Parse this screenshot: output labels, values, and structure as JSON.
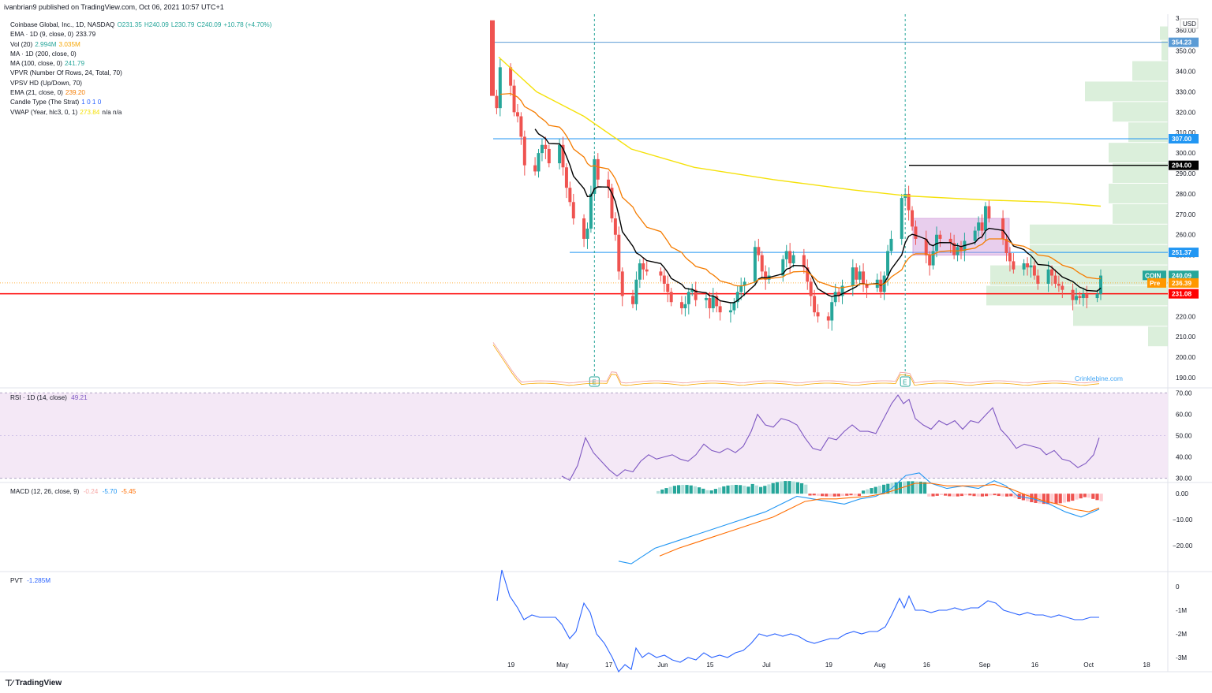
{
  "header": {
    "published": "ivanbrian9 published on TradingView.com, Oct 06, 2021 10:57 UTC+1"
  },
  "legend": [
    {
      "label": "Coinbase Global, Inc., 1D, NASDAQ",
      "values": [
        {
          "text": "O231.35",
          "color": "#26a69a"
        },
        {
          "text": "H240.09",
          "color": "#26a69a"
        },
        {
          "text": "L230.79",
          "color": "#26a69a"
        },
        {
          "text": "C240.09",
          "color": "#26a69a"
        },
        {
          "text": "+10.78 (+4.70%)",
          "color": "#26a69a"
        }
      ]
    },
    {
      "label": "EMA · 1D (9, close, 0)",
      "values": [
        {
          "text": "233.79",
          "color": "#131722"
        }
      ]
    },
    {
      "label": "Vol (20)",
      "values": [
        {
          "text": "2.994M",
          "color": "#26a69a"
        },
        {
          "text": "3.035M",
          "color": "#f7a600"
        }
      ]
    },
    {
      "label": "MA · 1D (200, close, 0)",
      "values": []
    },
    {
      "label": "MA (100, close, 0)",
      "values": [
        {
          "text": "241.79",
          "color": "#26a69a"
        }
      ]
    },
    {
      "label": "VPVR (Number Of Rows, 24, Total, 70)",
      "values": []
    },
    {
      "label": "VPSV HD (Up/Down, 70)",
      "values": []
    },
    {
      "label": "EMA (21, close, 0)",
      "values": [
        {
          "text": "239.20",
          "color": "#f57c00"
        }
      ]
    },
    {
      "label": "Candle Type (The Strat)",
      "values": [
        {
          "text": "1  0  1  0",
          "color": "#2962ff"
        }
      ]
    },
    {
      "label": "VWAP (Year, hlc3, 0, 1)",
      "values": [
        {
          "text": "273.84",
          "color": "#f5e10a"
        },
        {
          "text": "n/a  n/a",
          "color": "#131722"
        }
      ]
    }
  ],
  "panes": {
    "rsi_label": "RSI · 1D (14, close)",
    "rsi_value": "49.21",
    "macd_label": "MACD (12, 26, close, 9)",
    "macd_hist": "-0.24",
    "macd_line": "-5.70",
    "macd_signal": "-5.45",
    "pvt_label": "PVT",
    "pvt_value": "-1.285M"
  },
  "watermark": "Crinklebine.com",
  "footer": {
    "brand": "TradingView"
  },
  "colors": {
    "up": "#26a69a",
    "down": "#ef5350",
    "ema9": "#000000",
    "ema21": "#f57c00",
    "ma200": "#f5e10a",
    "rsi": "#7e57c2",
    "macd": "#2196f3",
    "signal": "#ff6d00",
    "pvt": "#2962ff",
    "level": "#00bcd4",
    "support": "#ff0000",
    "volprofile": "#cfe9cf"
  },
  "chart_data": {
    "type": "candlestick",
    "symbol": "COIN",
    "currency": "USD",
    "x_ticks": [
      "19",
      "May",
      "17",
      "Jun",
      "15",
      "Jul",
      "19",
      "Aug",
      "16",
      "Sep",
      "16",
      "Oct",
      "18"
    ],
    "price_axis": {
      "ylim": [
        185,
        368
      ],
      "ticks": [
        190,
        200,
        210,
        220,
        230,
        240,
        250,
        260,
        270,
        280,
        290,
        300,
        310,
        320,
        330,
        340,
        350,
        360
      ],
      "top_label": "3",
      "unit": "USD"
    },
    "price_tags": [
      {
        "value": 354.23,
        "text": "354.23",
        "bg": "#5b9bd5"
      },
      {
        "value": 307.0,
        "text": "307.00",
        "bg": "#2196f3"
      },
      {
        "value": 294.0,
        "text": "294.00",
        "bg": "#000000"
      },
      {
        "value": 251.37,
        "text": "251.37",
        "bg": "#2196f3"
      },
      {
        "value": 240.09,
        "text": "240.09",
        "bg": "#26a69a",
        "symbol": "COIN"
      },
      {
        "value": 236.39,
        "text": "236.39",
        "bg": "#ff9800",
        "symbol": "Pre"
      },
      {
        "value": 231.08,
        "text": "231.08",
        "bg": "#ff0000"
      }
    ],
    "horizontal_levels": [
      {
        "value": 354.23,
        "color": "#5b9bd5"
      },
      {
        "value": 307.0,
        "color": "#2196f3"
      },
      {
        "value": 294.0,
        "color": "#000000"
      },
      {
        "value": 251.37,
        "color": "#2196f3"
      },
      {
        "value": 231.08,
        "color": "#ff0000"
      }
    ],
    "earnings_markers": [
      "May 13",
      "Aug 10"
    ],
    "ohlc_close_path": [
      [
        "Apr 14",
        328
      ],
      [
        "Apr 15",
        322
      ],
      [
        "Apr 16",
        342
      ],
      [
        "Apr 19",
        333
      ],
      [
        "Apr 20",
        320
      ],
      [
        "Apr 21",
        318
      ],
      [
        "Apr 22",
        308
      ],
      [
        "Apr 23",
        294
      ],
      [
        "Apr 26",
        291
      ],
      [
        "Apr 27",
        300
      ],
      [
        "Apr 28",
        304
      ],
      [
        "Apr 29",
        302
      ],
      [
        "Apr 30",
        295
      ],
      [
        "May 03",
        304
      ],
      [
        "May 04",
        293
      ],
      [
        "May 05",
        283
      ],
      [
        "May 06",
        276
      ],
      [
        "May 07",
        268
      ],
      [
        "May 10",
        258
      ],
      [
        "May 11",
        263
      ],
      [
        "May 12",
        280
      ],
      [
        "May 13",
        297
      ],
      [
        "May 14",
        287
      ],
      [
        "May 17",
        283
      ],
      [
        "May 18",
        268
      ],
      [
        "May 19",
        260
      ],
      [
        "May 20",
        242
      ],
      [
        "May 21",
        230
      ],
      [
        "May 24",
        226
      ],
      [
        "May 25",
        238
      ],
      [
        "May 26",
        246
      ],
      [
        "May 27",
        243
      ],
      [
        "May 28",
        242
      ],
      [
        "Jun 01",
        240
      ],
      [
        "Jun 02",
        236
      ],
      [
        "Jun 03",
        232
      ],
      [
        "Jun 04",
        227
      ],
      [
        "Jun 07",
        224
      ],
      [
        "Jun 08",
        226
      ],
      [
        "Jun 09",
        232
      ],
      [
        "Jun 10",
        233
      ],
      [
        "Jun 11",
        228
      ],
      [
        "Jun 14",
        229
      ],
      [
        "Jun 15",
        224
      ],
      [
        "Jun 16",
        230
      ],
      [
        "Jun 17",
        225
      ],
      [
        "Jun 18",
        222
      ],
      [
        "Jun 21",
        223
      ],
      [
        "Jun 22",
        227
      ],
      [
        "Jun 23",
        232
      ],
      [
        "Jun 24",
        235
      ],
      [
        "Jun 25",
        237
      ],
      [
        "Jun 28",
        254
      ],
      [
        "Jun 29",
        250
      ],
      [
        "Jun 30",
        242
      ],
      [
        "Jul 01",
        238
      ],
      [
        "Jul 02",
        240
      ],
      [
        "Jul 06",
        248
      ],
      [
        "Jul 07",
        252
      ],
      [
        "Jul 08",
        246
      ],
      [
        "Jul 09",
        250
      ],
      [
        "Jul 12",
        244
      ],
      [
        "Jul 13",
        237
      ],
      [
        "Jul 14",
        230
      ],
      [
        "Jul 15",
        222
      ],
      [
        "Jul 16",
        220
      ],
      [
        "Jul 19",
        218
      ],
      [
        "Jul 20",
        227
      ],
      [
        "Jul 21",
        232
      ],
      [
        "Jul 22",
        230
      ],
      [
        "Jul 23",
        235
      ],
      [
        "Jul 26",
        244
      ],
      [
        "Jul 27",
        238
      ],
      [
        "Jul 28",
        242
      ],
      [
        "Jul 29",
        236
      ],
      [
        "Jul 30",
        234
      ],
      [
        "Aug 02",
        238
      ],
      [
        "Aug 03",
        232
      ],
      [
        "Aug 04",
        240
      ],
      [
        "Aug 05",
        252
      ],
      [
        "Aug 06",
        258
      ],
      [
        "Aug 09",
        278
      ],
      [
        "Aug 10",
        280
      ],
      [
        "Aug 11",
        272
      ],
      [
        "Aug 12",
        264
      ],
      [
        "Aug 13",
        258
      ],
      [
        "Aug 16",
        250
      ],
      [
        "Aug 17",
        245
      ],
      [
        "Aug 18",
        252
      ],
      [
        "Aug 19",
        260
      ],
      [
        "Aug 20",
        258
      ],
      [
        "Aug 23",
        256
      ],
      [
        "Aug 24",
        250
      ],
      [
        "Aug 25",
        254
      ],
      [
        "Aug 26",
        252
      ],
      [
        "Aug 27",
        257
      ],
      [
        "Aug 30",
        262
      ],
      [
        "Aug 31",
        266
      ],
      [
        "Sep 01",
        262
      ],
      [
        "Sep 02",
        274
      ],
      [
        "Sep 03",
        268
      ],
      [
        "Sep 07",
        258
      ],
      [
        "Sep 08",
        251
      ],
      [
        "Sep 09",
        247
      ],
      [
        "Sep 10",
        243
      ],
      [
        "Sep 13",
        246
      ],
      [
        "Sep 14",
        244
      ],
      [
        "Sep 15",
        245
      ],
      [
        "Sep 16",
        240
      ],
      [
        "Sep 17",
        236
      ],
      [
        "Sep 20",
        243
      ],
      [
        "Sep 21",
        240
      ],
      [
        "Sep 22",
        236
      ],
      [
        "Sep 23",
        235
      ],
      [
        "Sep 24",
        233
      ],
      [
        "Sep 27",
        228
      ],
      [
        "Sep 28",
        230
      ],
      [
        "Sep 29",
        229
      ],
      [
        "Sep 30",
        231
      ],
      [
        "Oct 01",
        229
      ],
      [
        "Oct 04",
        231
      ],
      [
        "Oct 05",
        240
      ]
    ],
    "rsi": {
      "ylim": [
        28,
        72
      ],
      "ticks": [
        30,
        40,
        50,
        60,
        70
      ],
      "band": [
        30,
        70
      ],
      "last": 49.21
    },
    "macd": {
      "ticks": [
        0,
        -10,
        -20
      ],
      "last": {
        "hist": -0.24,
        "macd": -5.7,
        "signal": -5.45
      }
    },
    "pvt": {
      "ticks": [
        "0",
        "-1M",
        "-2M",
        "-3M"
      ],
      "last": "-1.285M"
    }
  }
}
